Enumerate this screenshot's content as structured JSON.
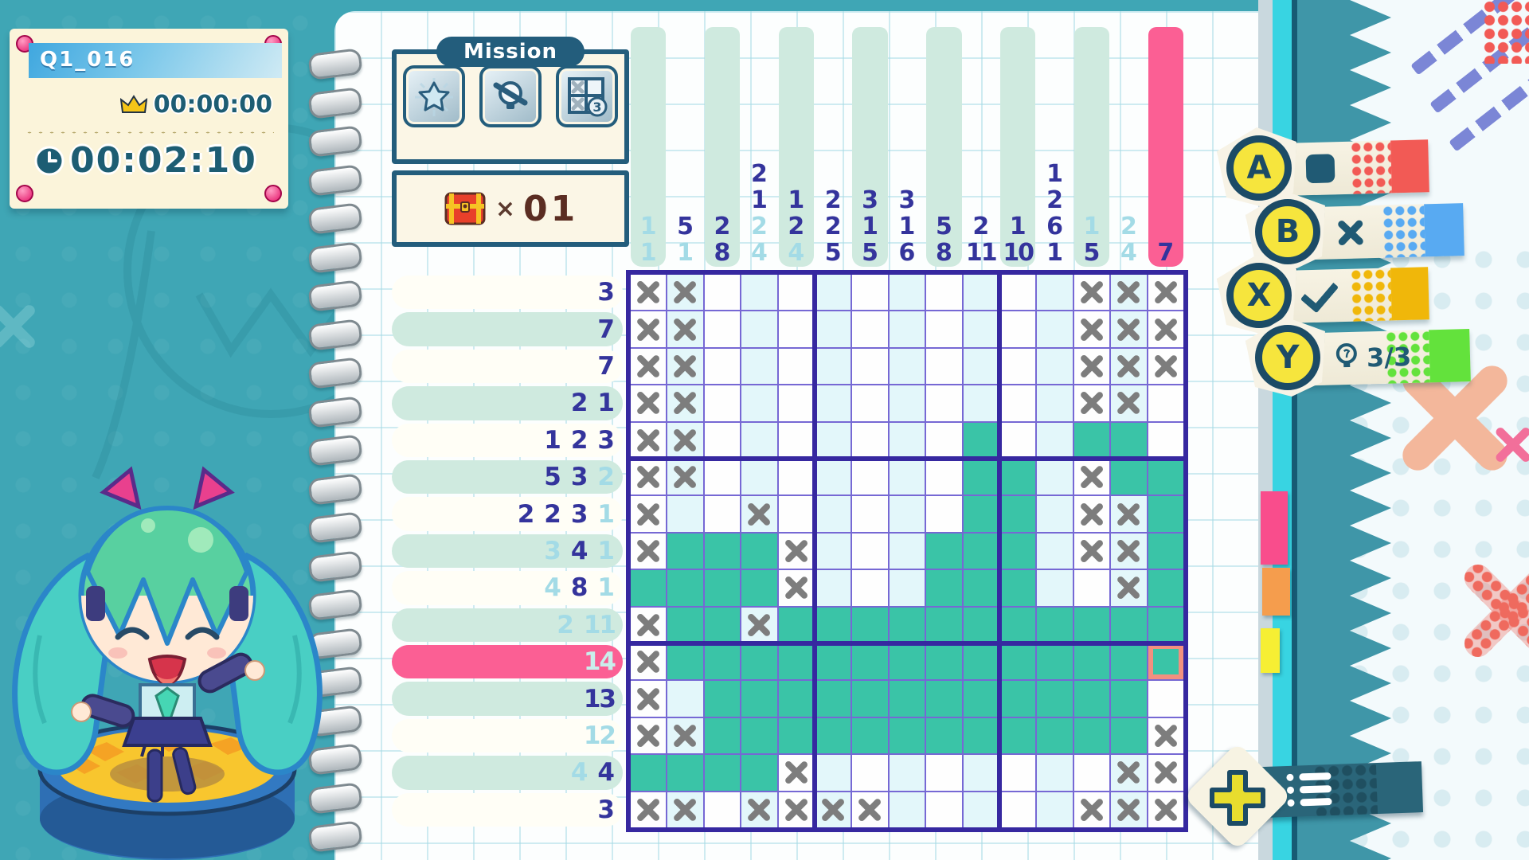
{
  "hud": {
    "puzzle_id": "Q1_016",
    "best_time": "00:00:00",
    "elapsed_time": "00:02:10"
  },
  "mission": {
    "title": "Mission",
    "icons": [
      {
        "name": "star-clear-mission-icon"
      },
      {
        "name": "no-hints-mission-icon"
      },
      {
        "name": "limited-mistakes-mission-icon",
        "badge": "3"
      }
    ]
  },
  "treasure": {
    "chest_icon": "treasure-chest-icon",
    "multiplier": "×",
    "count": "01"
  },
  "controls": {
    "buttons": [
      {
        "key": "A",
        "action": "fill-square",
        "icon": "filled-square-icon",
        "accent": "#f25a55"
      },
      {
        "key": "B",
        "action": "mark-x",
        "icon": "x-mark-icon",
        "accent": "#58aaf2"
      },
      {
        "key": "X",
        "action": "check",
        "icon": "check-icon",
        "accent": "#f0b70a"
      },
      {
        "key": "Y",
        "action": "hint",
        "icon": "lightbulb-icon",
        "label": "3/3",
        "accent": "#63e23c"
      }
    ]
  },
  "menu": {
    "plus_icon": "dpad-plus-icon",
    "list_icon": "menu-list-icon"
  },
  "board": {
    "size": 15,
    "selected_row": 11,
    "selected_col": 15,
    "cursor": {
      "row": 11,
      "col": 15
    },
    "col_hints": [
      [
        {
          "v": 1,
          "done": true
        },
        {
          "v": 1,
          "done": true
        }
      ],
      [
        {
          "v": 5
        },
        {
          "v": 1,
          "done": true
        }
      ],
      [
        {
          "v": 2
        },
        {
          "v": 8
        }
      ],
      [
        {
          "v": 2
        },
        {
          "v": 1
        },
        {
          "v": 2,
          "done": true
        },
        {
          "v": 4,
          "done": true
        }
      ],
      [
        {
          "v": 1
        },
        {
          "v": 2
        },
        {
          "v": 4,
          "done": true
        }
      ],
      [
        {
          "v": 2
        },
        {
          "v": 2
        },
        {
          "v": 5
        }
      ],
      [
        {
          "v": 3
        },
        {
          "v": 1
        },
        {
          "v": 5
        }
      ],
      [
        {
          "v": 3
        },
        {
          "v": 1
        },
        {
          "v": 6
        }
      ],
      [
        {
          "v": 5
        },
        {
          "v": 8
        }
      ],
      [
        {
          "v": 2
        },
        {
          "v": 11
        }
      ],
      [
        {
          "v": 1
        },
        {
          "v": 10
        }
      ],
      [
        {
          "v": 1
        },
        {
          "v": 2
        },
        {
          "v": 6
        },
        {
          "v": 1
        }
      ],
      [
        {
          "v": 1,
          "done": true
        },
        {
          "v": 5
        }
      ],
      [
        {
          "v": 2,
          "done": true
        },
        {
          "v": 4,
          "done": true
        }
      ],
      [
        {
          "v": 7
        }
      ]
    ],
    "row_hints": [
      [
        {
          "v": 3
        }
      ],
      [
        {
          "v": 7
        }
      ],
      [
        {
          "v": 7
        }
      ],
      [
        {
          "v": 2
        },
        {
          "v": 1
        }
      ],
      [
        {
          "v": 1
        },
        {
          "v": 2
        },
        {
          "v": 3
        }
      ],
      [
        {
          "v": 5
        },
        {
          "v": 3
        },
        {
          "v": 2,
          "done": true
        }
      ],
      [
        {
          "v": 2
        },
        {
          "v": 2
        },
        {
          "v": 3
        },
        {
          "v": 1,
          "done": true
        }
      ],
      [
        {
          "v": 3,
          "done": true
        },
        {
          "v": 4
        },
        {
          "v": 1,
          "done": true
        }
      ],
      [
        {
          "v": 4,
          "done": true
        },
        {
          "v": 8
        },
        {
          "v": 1,
          "done": true
        }
      ],
      [
        {
          "v": 2,
          "done": true
        },
        {
          "v": 11,
          "done": true
        }
      ],
      [
        {
          "v": 14,
          "done": true
        }
      ],
      [
        {
          "v": 13
        }
      ],
      [
        {
          "v": 12,
          "done": true
        }
      ],
      [
        {
          "v": 4,
          "done": true
        },
        {
          "v": 4
        }
      ],
      [
        {
          "v": 3
        }
      ]
    ],
    "cells": [
      "XXEEEEEEEEEEXXX",
      "XXEEEEEEEEEEXXX",
      "XXEEEEEEEEEEXXX",
      "XXEEEEEEEEEEXXE",
      "XXEEEEEEEFEEFFE",
      "XXEEEEEEEFFEXFF",
      "XEEXEEEEEFFEXXF",
      "XFFFXEEEFFFEXXF",
      "FFFFXEEEFFFEEXF",
      "XFFXFFFFFFFFFFF",
      "XFFFFFFFFFFFFFF",
      "XEFFFFFFFFFFFFE",
      "XXFFFFFFFFFFFFX",
      "FFFFXEEEEEEEEXX",
      "XXEXXXXEEEEEXXX"
    ]
  },
  "colors": {
    "filled_cell": "#3ac4a7",
    "selected_band": "#fb5f94",
    "cursor_outline": "#f2907f",
    "hint_active": "#34349c",
    "hint_done": "#a3dbe6",
    "background": "#3fa6b5"
  }
}
